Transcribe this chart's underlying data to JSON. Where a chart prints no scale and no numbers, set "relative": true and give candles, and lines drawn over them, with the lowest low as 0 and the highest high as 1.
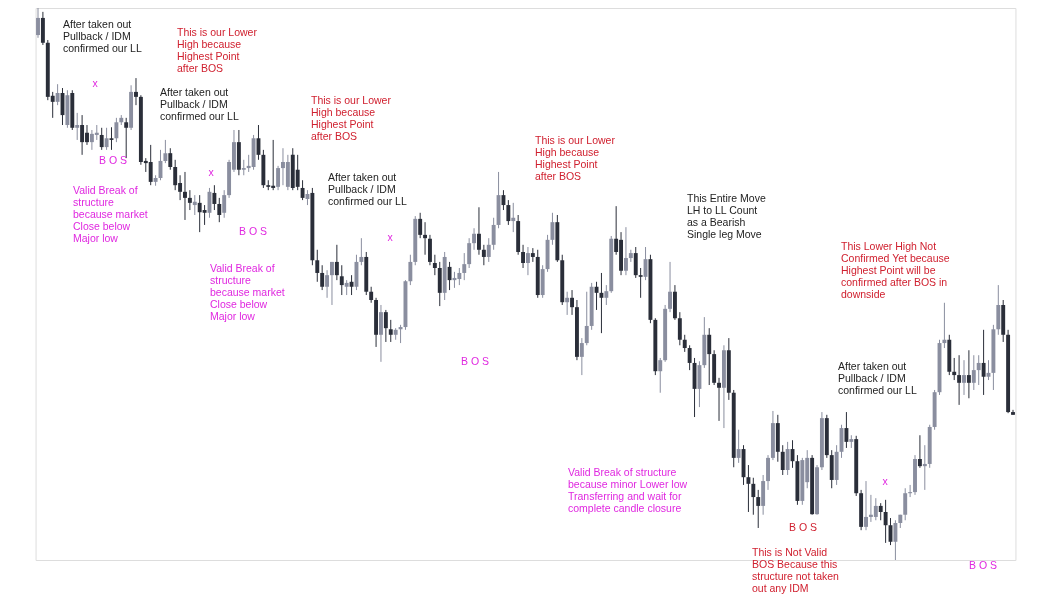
{
  "chart_data": {
    "type": "candlestick",
    "relative": true,
    "categories": [
      null,
      null,
      null,
      null,
      null,
      null,
      null,
      null,
      null,
      null,
      null,
      null,
      null,
      null,
      null,
      null,
      null,
      null,
      null,
      null,
      null,
      null,
      null,
      null,
      null,
      null,
      null,
      null,
      null,
      null,
      null,
      null,
      null,
      null,
      null,
      null,
      null,
      null,
      null,
      null,
      null,
      null,
      null,
      null,
      null,
      null,
      null,
      null,
      null,
      null,
      null,
      null,
      null,
      null,
      null,
      null,
      null,
      null,
      null,
      null,
      null,
      null,
      null,
      null,
      null,
      null,
      null,
      null,
      null,
      null,
      null,
      null,
      null,
      null,
      null,
      null,
      null,
      null,
      null,
      null,
      null,
      null,
      null,
      null,
      null,
      null,
      null,
      null,
      null,
      null,
      null,
      null,
      null,
      null,
      null,
      null,
      null,
      null,
      null,
      null,
      null,
      null,
      null,
      null,
      null,
      null,
      null,
      null,
      null,
      null,
      null,
      null,
      null,
      null,
      null,
      null,
      null,
      null,
      null,
      null,
      null,
      null,
      null,
      null,
      null,
      null,
      null,
      null,
      null,
      null,
      null,
      null,
      null,
      null,
      null,
      null,
      null,
      null,
      null,
      null,
      null,
      null,
      null,
      null,
      null,
      null,
      null,
      null,
      null,
      null,
      null,
      null,
      null,
      null,
      null,
      null,
      null,
      null,
      null,
      null,
      null,
      null,
      null,
      null,
      null,
      null,
      null,
      null,
      null,
      null,
      null,
      null,
      null,
      null,
      null,
      null,
      null,
      null,
      null,
      null,
      null,
      null,
      null,
      null,
      null,
      null,
      null,
      null,
      null,
      null,
      null,
      null,
      null,
      null,
      null,
      null,
      null,
      null,
      null,
      null
    ],
    "ohlc": [
      [
        0.951,
        1.0,
        0.946,
        0.982
      ],
      [
        0.982,
        0.993,
        0.933,
        0.937
      ],
      [
        0.937,
        0.942,
        0.833,
        0.839
      ],
      [
        0.841,
        0.848,
        0.801,
        0.83
      ],
      [
        0.83,
        0.862,
        0.824,
        0.846
      ],
      [
        0.846,
        0.855,
        0.788,
        0.806
      ],
      [
        0.788,
        0.851,
        0.783,
        0.842
      ],
      [
        0.846,
        0.851,
        0.779,
        0.783
      ],
      [
        0.783,
        0.81,
        0.761,
        0.788
      ],
      [
        0.788,
        0.806,
        0.734,
        0.757
      ],
      [
        0.774,
        0.788,
        0.752,
        0.757
      ],
      [
        0.757,
        0.779,
        0.743,
        0.772
      ],
      [
        0.77,
        0.788,
        0.761,
        0.774
      ],
      [
        0.77,
        0.783,
        0.743,
        0.748
      ],
      [
        0.748,
        0.783,
        0.743,
        0.764
      ],
      [
        0.764,
        0.784,
        0.743,
        0.761
      ],
      [
        0.764,
        0.801,
        0.757,
        0.793
      ],
      [
        0.793,
        0.806,
        0.788,
        0.801
      ],
      [
        0.793,
        0.801,
        0.728,
        0.783
      ],
      [
        0.783,
        0.86,
        0.779,
        0.848
      ],
      [
        0.848,
        0.873,
        0.824,
        0.839
      ],
      [
        0.839,
        0.842,
        0.716,
        0.721
      ],
      [
        0.723,
        0.728,
        0.703,
        0.719
      ],
      [
        0.721,
        0.752,
        0.679,
        0.685
      ],
      [
        0.685,
        0.697,
        0.678,
        0.692
      ],
      [
        0.692,
        0.743,
        0.688,
        0.723
      ],
      [
        0.723,
        0.761,
        0.719,
        0.737
      ],
      [
        0.737,
        0.746,
        0.707,
        0.712
      ],
      [
        0.712,
        0.725,
        0.67,
        0.679
      ],
      [
        0.683,
        0.697,
        0.652,
        0.667
      ],
      [
        0.667,
        0.703,
        0.616,
        0.656
      ],
      [
        0.656,
        0.67,
        0.634,
        0.647
      ],
      [
        0.643,
        0.661,
        0.625,
        0.649
      ],
      [
        0.647,
        0.661,
        0.594,
        0.63
      ],
      [
        0.634,
        0.643,
        0.607,
        0.629
      ],
      [
        0.629,
        0.674,
        0.62,
        0.667
      ],
      [
        0.665,
        0.679,
        0.634,
        0.645
      ],
      [
        0.645,
        0.656,
        0.612,
        0.625
      ],
      [
        0.629,
        0.67,
        0.62,
        0.661
      ],
      [
        0.661,
        0.725,
        0.656,
        0.721
      ],
      [
        0.707,
        0.779,
        0.703,
        0.757
      ],
      [
        0.757,
        0.779,
        0.697,
        0.707
      ],
      [
        0.707,
        0.725,
        0.697,
        0.71
      ],
      [
        0.71,
        0.734,
        0.703,
        0.714
      ],
      [
        0.712,
        0.77,
        0.707,
        0.764
      ],
      [
        0.764,
        0.788,
        0.725,
        0.734
      ],
      [
        0.734,
        0.743,
        0.674,
        0.679
      ],
      [
        0.679,
        0.688,
        0.67,
        0.676
      ],
      [
        0.678,
        0.761,
        0.67,
        0.674
      ],
      [
        0.676,
        0.714,
        0.67,
        0.71
      ],
      [
        0.71,
        0.746,
        0.679,
        0.721
      ],
      [
        0.676,
        0.734,
        0.67,
        0.721
      ],
      [
        0.734,
        0.746,
        0.67,
        0.674
      ],
      [
        0.707,
        0.734,
        0.67,
        0.676
      ],
      [
        0.674,
        0.688,
        0.652,
        0.656
      ],
      [
        0.654,
        0.67,
        0.643,
        0.663
      ],
      [
        0.665,
        0.674,
        0.534,
        0.543
      ],
      [
        0.543,
        0.562,
        0.504,
        0.52
      ],
      [
        0.52,
        0.534,
        0.489,
        0.495
      ],
      [
        0.495,
        0.525,
        0.475,
        0.516
      ],
      [
        0.516,
        0.54,
        0.462,
        0.54
      ],
      [
        0.54,
        0.571,
        0.507,
        0.516
      ],
      [
        0.514,
        0.534,
        0.48,
        0.498
      ],
      [
        0.495,
        0.507,
        0.48,
        0.502
      ],
      [
        0.504,
        0.516,
        0.48,
        0.495
      ],
      [
        0.495,
        0.553,
        0.489,
        0.54
      ],
      [
        0.54,
        0.583,
        0.534,
        0.549
      ],
      [
        0.549,
        0.558,
        0.48,
        0.486
      ],
      [
        0.486,
        0.495,
        0.466,
        0.471
      ],
      [
        0.471,
        0.475,
        0.386,
        0.408
      ],
      [
        0.408,
        0.462,
        0.359,
        0.449
      ],
      [
        0.449,
        0.453,
        0.395,
        0.42
      ],
      [
        0.418,
        0.435,
        0.395,
        0.408
      ],
      [
        0.408,
        0.42,
        0.399,
        0.417
      ],
      [
        0.418,
        0.426,
        0.393,
        0.422
      ],
      [
        0.422,
        0.507,
        0.417,
        0.505
      ],
      [
        0.505,
        0.553,
        0.498,
        0.54
      ],
      [
        0.54,
        0.623,
        0.534,
        0.618
      ],
      [
        0.618,
        0.629,
        0.583,
        0.589
      ],
      [
        0.589,
        0.612,
        0.553,
        0.583
      ],
      [
        0.582,
        0.589,
        0.534,
        0.54
      ],
      [
        0.538,
        0.553,
        0.516,
        0.529
      ],
      [
        0.529,
        0.54,
        0.46,
        0.484
      ],
      [
        0.484,
        0.558,
        0.471,
        0.549
      ],
      [
        0.531,
        0.54,
        0.489,
        0.507
      ],
      [
        0.507,
        0.522,
        0.493,
        0.511
      ],
      [
        0.509,
        0.529,
        0.498,
        0.52
      ],
      [
        0.52,
        0.556,
        0.507,
        0.536
      ],
      [
        0.536,
        0.583,
        0.529,
        0.574
      ],
      [
        0.574,
        0.601,
        0.562,
        0.591
      ],
      [
        0.591,
        0.639,
        0.553,
        0.562
      ],
      [
        0.562,
        0.571,
        0.534,
        0.549
      ],
      [
        0.549,
        0.583,
        0.54,
        0.571
      ],
      [
        0.571,
        0.62,
        0.562,
        0.607
      ],
      [
        0.607,
        0.703,
        0.601,
        0.661
      ],
      [
        0.661,
        0.67,
        0.634,
        0.643
      ],
      [
        0.643,
        0.652,
        0.607,
        0.614
      ],
      [
        0.614,
        0.647,
        0.594,
        0.62
      ],
      [
        0.614,
        0.625,
        0.553,
        0.558
      ],
      [
        0.558,
        0.571,
        0.529,
        0.538
      ],
      [
        0.538,
        0.567,
        0.516,
        0.556
      ],
      [
        0.556,
        0.565,
        0.54,
        0.549
      ],
      [
        0.549,
        0.562,
        0.475,
        0.48
      ],
      [
        0.48,
        0.534,
        0.475,
        0.527
      ],
      [
        0.527,
        0.589,
        0.522,
        0.58
      ],
      [
        0.58,
        0.629,
        0.571,
        0.612
      ],
      [
        0.612,
        0.625,
        0.54,
        0.543
      ],
      [
        0.543,
        0.553,
        0.462,
        0.467
      ],
      [
        0.467,
        0.486,
        0.444,
        0.475
      ],
      [
        0.475,
        0.489,
        0.444,
        0.458
      ],
      [
        0.458,
        0.471,
        0.362,
        0.368
      ],
      [
        0.368,
        0.402,
        0.335,
        0.393
      ],
      [
        0.393,
        0.486,
        0.389,
        0.424
      ],
      [
        0.424,
        0.502,
        0.417,
        0.495
      ],
      [
        0.495,
        0.504,
        0.453,
        0.484
      ],
      [
        0.484,
        0.52,
        0.411,
        0.475
      ],
      [
        0.475,
        0.498,
        0.462,
        0.487
      ],
      [
        0.487,
        0.587,
        0.484,
        0.582
      ],
      [
        0.582,
        0.641,
        0.553,
        0.558
      ],
      [
        0.58,
        0.594,
        0.516,
        0.524
      ],
      [
        0.524,
        0.603,
        0.516,
        0.547
      ],
      [
        0.547,
        0.562,
        0.54,
        0.556
      ],
      [
        0.556,
        0.567,
        0.511,
        0.516
      ],
      [
        0.516,
        0.529,
        0.475,
        0.513
      ],
      [
        0.513,
        0.567,
        0.507,
        0.545
      ],
      [
        0.545,
        0.553,
        0.429,
        0.435
      ],
      [
        0.435,
        0.438,
        0.335,
        0.342
      ],
      [
        0.342,
        0.366,
        0.303,
        0.362
      ],
      [
        0.362,
        0.462,
        0.359,
        0.455
      ],
      [
        0.455,
        0.54,
        0.449,
        0.486
      ],
      [
        0.486,
        0.498,
        0.435,
        0.438
      ],
      [
        0.438,
        0.449,
        0.389,
        0.399
      ],
      [
        0.399,
        0.408,
        0.377,
        0.384
      ],
      [
        0.384,
        0.389,
        0.344,
        0.357
      ],
      [
        0.357,
        0.366,
        0.259,
        0.31
      ],
      [
        0.31,
        0.36,
        0.277,
        0.353
      ],
      [
        0.353,
        0.44,
        0.348,
        0.408
      ],
      [
        0.408,
        0.42,
        0.317,
        0.373
      ],
      [
        0.373,
        0.38,
        0.317,
        0.321
      ],
      [
        0.321,
        0.33,
        0.252,
        0.312
      ],
      [
        0.312,
        0.389,
        0.239,
        0.38
      ],
      [
        0.38,
        0.402,
        0.29,
        0.303
      ],
      [
        0.303,
        0.308,
        0.168,
        0.185
      ],
      [
        0.185,
        0.236,
        0.176,
        0.201
      ],
      [
        0.201,
        0.208,
        0.136,
        0.15
      ],
      [
        0.15,
        0.172,
        0.087,
        0.138
      ],
      [
        0.138,
        0.149,
        0.082,
        0.114
      ],
      [
        0.114,
        0.127,
        0.058,
        0.098
      ],
      [
        0.098,
        0.154,
        0.082,
        0.143
      ],
      [
        0.143,
        0.19,
        0.127,
        0.185
      ],
      [
        0.185,
        0.27,
        0.181,
        0.248
      ],
      [
        0.248,
        0.263,
        0.178,
        0.196
      ],
      [
        0.196,
        0.208,
        0.154,
        0.163
      ],
      [
        0.163,
        0.214,
        0.154,
        0.201
      ],
      [
        0.201,
        0.217,
        0.167,
        0.179
      ],
      [
        0.179,
        0.19,
        0.1,
        0.107
      ],
      [
        0.107,
        0.185,
        0.1,
        0.181
      ],
      [
        0.141,
        0.199,
        0.13,
        0.185
      ],
      [
        0.185,
        0.19,
        0.082,
        0.083
      ],
      [
        0.083,
        0.172,
        0.082,
        0.168
      ],
      [
        0.168,
        0.268,
        0.163,
        0.257
      ],
      [
        0.257,
        0.263,
        0.185,
        0.19
      ],
      [
        0.19,
        0.199,
        0.13,
        0.145
      ],
      [
        0.145,
        0.208,
        0.136,
        0.196
      ],
      [
        0.196,
        0.245,
        0.185,
        0.239
      ],
      [
        0.239,
        0.268,
        0.203,
        0.214
      ],
      [
        0.214,
        0.226,
        0.203,
        0.219
      ],
      [
        0.219,
        0.225,
        0.116,
        0.121
      ],
      [
        0.121,
        0.127,
        0.054,
        0.06
      ],
      [
        0.06,
        0.143,
        0.054,
        0.078
      ],
      [
        0.078,
        0.118,
        0.069,
        0.082
      ],
      [
        0.078,
        0.112,
        0.072,
        0.098
      ],
      [
        0.098,
        0.103,
        0.072,
        0.087
      ],
      [
        0.087,
        0.109,
        0.031,
        0.063
      ],
      [
        0.063,
        0.076,
        0.027,
        0.033
      ],
      [
        0.033,
        0.072,
        0.0,
        0.067
      ],
      [
        0.067,
        0.082,
        0.058,
        0.082
      ],
      [
        0.082,
        0.13,
        0.072,
        0.121
      ],
      [
        0.121,
        0.136,
        0.114,
        0.123
      ],
      [
        0.123,
        0.19,
        0.118,
        0.183
      ],
      [
        0.183,
        0.226,
        0.167,
        0.17
      ],
      [
        0.17,
        0.208,
        0.127,
        0.174
      ],
      [
        0.174,
        0.245,
        0.167,
        0.241
      ],
      [
        0.241,
        0.308,
        0.236,
        0.304
      ],
      [
        0.304,
        0.399,
        0.299,
        0.393
      ],
      [
        0.393,
        0.466,
        0.384,
        0.399
      ],
      [
        0.399,
        0.408,
        0.335,
        0.341
      ],
      [
        0.341,
        0.366,
        0.326,
        0.335
      ],
      [
        0.335,
        0.371,
        0.281,
        0.321
      ],
      [
        0.321,
        0.362,
        0.299,
        0.335
      ],
      [
        0.335,
        0.38,
        0.293,
        0.321
      ],
      [
        0.321,
        0.371,
        0.308,
        0.344
      ],
      [
        0.344,
        0.371,
        0.317,
        0.357
      ],
      [
        0.357,
        0.417,
        0.299,
        0.332
      ],
      [
        0.332,
        0.362,
        0.326,
        0.339
      ],
      [
        0.339,
        0.426,
        0.308,
        0.418
      ],
      [
        0.418,
        0.498,
        0.408,
        0.462
      ],
      [
        0.462,
        0.471,
        0.395,
        0.408
      ],
      [
        0.408,
        0.417,
        0.266,
        0.268
      ],
      [
        0.268,
        0.272,
        0.263,
        0.263
      ]
    ],
    "colors": [
      "#8a8e9f",
      "#2a2e39",
      "#2a2e39",
      "#2a2e39",
      "#8a8e9f",
      "#2a2e39",
      "#8a8e9f",
      "#2a2e39",
      "#8a8e9f",
      "#2a2e39",
      "#2a2e39",
      "#8a8e9f",
      "#8a8e9f",
      "#2a2e39",
      "#8a8e9f",
      "#2a2e39",
      "#8a8e9f",
      "#8a8e9f",
      "#2a2e39",
      "#8a8e9f",
      "#2a2e39",
      "#2a2e39",
      "#2a2e39",
      "#2a2e39",
      "#8a8e9f",
      "#8a8e9f",
      "#8a8e9f",
      "#2a2e39",
      "#2a2e39",
      "#2a2e39",
      "#2a2e39",
      "#2a2e39",
      "#8a8e9f",
      "#2a2e39",
      "#2a2e39",
      "#8a8e9f",
      "#2a2e39",
      "#2a2e39",
      "#8a8e9f",
      "#8a8e9f",
      "#8a8e9f",
      "#2a2e39",
      "#8a8e9f",
      "#8a8e9f",
      "#8a8e9f",
      "#2a2e39",
      "#2a2e39",
      "#2a2e39",
      "#2a2e39",
      "#8a8e9f",
      "#8a8e9f",
      "#8a8e9f",
      "#2a2e39",
      "#2a2e39",
      "#2a2e39",
      "#8a8e9f",
      "#2a2e39",
      "#2a2e39",
      "#2a2e39",
      "#8a8e9f",
      "#8a8e9f",
      "#2a2e39",
      "#2a2e39",
      "#8a8e9f",
      "#2a2e39",
      "#8a8e9f",
      "#8a8e9f",
      "#2a2e39",
      "#2a2e39",
      "#2a2e39",
      "#8a8e9f",
      "#2a2e39",
      "#2a2e39",
      "#8a8e9f",
      "#8a8e9f",
      "#8a8e9f",
      "#8a8e9f",
      "#8a8e9f",
      "#2a2e39",
      "#2a2e39",
      "#2a2e39",
      "#2a2e39",
      "#2a2e39",
      "#8a8e9f",
      "#2a2e39",
      "#8a8e9f",
      "#8a8e9f",
      "#8a8e9f",
      "#8a8e9f",
      "#8a8e9f",
      "#2a2e39",
      "#2a2e39",
      "#8a8e9f",
      "#8a8e9f",
      "#8a8e9f",
      "#2a2e39",
      "#2a2e39",
      "#8a8e9f",
      "#2a2e39",
      "#2a2e39",
      "#8a8e9f",
      "#2a2e39",
      "#2a2e39",
      "#8a8e9f",
      "#8a8e9f",
      "#8a8e9f",
      "#2a2e39",
      "#2a2e39",
      "#8a8e9f",
      "#2a2e39",
      "#2a2e39",
      "#8a8e9f",
      "#8a8e9f",
      "#8a8e9f",
      "#2a2e39",
      "#2a2e39",
      "#8a8e9f",
      "#8a8e9f",
      "#2a2e39",
      "#2a2e39",
      "#8a8e9f",
      "#8a8e9f",
      "#2a2e39",
      "#2a2e39",
      "#8a8e9f",
      "#2a2e39",
      "#2a2e39",
      "#8a8e9f",
      "#8a8e9f",
      "#8a8e9f",
      "#2a2e39",
      "#2a2e39",
      "#2a2e39",
      "#2a2e39",
      "#2a2e39",
      "#8a8e9f",
      "#8a8e9f",
      "#2a2e39",
      "#2a2e39",
      "#2a2e39",
      "#8a8e9f",
      "#2a2e39",
      "#2a2e39",
      "#8a8e9f",
      "#2a2e39",
      "#2a2e39",
      "#2a2e39",
      "#2a2e39",
      "#8a8e9f",
      "#8a8e9f",
      "#8a8e9f",
      "#2a2e39",
      "#2a2e39",
      "#8a8e9f",
      "#2a2e39",
      "#2a2e39",
      "#8a8e9f",
      "#8a8e9f",
      "#2a2e39",
      "#8a8e9f",
      "#8a8e9f",
      "#2a2e39",
      "#2a2e39",
      "#8a8e9f",
      "#8a8e9f",
      "#2a2e39",
      "#8a8e9f",
      "#2a2e39",
      "#2a2e39",
      "#8a8e9f",
      "#8a8e9f",
      "#8a8e9f",
      "#2a2e39",
      "#2a2e39",
      "#2a2e39",
      "#8a8e9f",
      "#8a8e9f",
      "#8a8e9f",
      "#8a8e9f",
      "#8a8e9f",
      "#2a2e39",
      "#8a8e9f",
      "#8a8e9f",
      "#8a8e9f",
      "#8a8e9f",
      "#8a8e9f",
      "#2a2e39",
      "#2a2e39",
      "#2a2e39",
      "#8a8e9f",
      "#2a2e39",
      "#8a8e9f",
      "#8a8e9f",
      "#2a2e39",
      "#8a8e9f",
      "#8a8e9f",
      "#8a8e9f",
      "#2a2e39",
      "#2a2e39",
      "#2a2e39"
    ],
    "annotations": [
      "After taken out\nPullback / IDM\nconfirmed our LL",
      "This is our Lower\nHigh because\nHighest Point\nafter BOS",
      "x",
      "B O S",
      "Valid Break of\nstructure\nbecause market\nClose below\nMajor low",
      "After taken out\nPullback / IDM\nconfirmed our LL",
      "This is our Lower\nHigh because\nHighest Point\nafter BOS",
      "x",
      "B O S",
      "Valid Break of\nstructure\nbecause market\nClose below\nMajor low",
      "After taken out\nPullback / IDM\nconfirmed our LL",
      "This is our Lower\nHigh because\nHighest Point\nafter BOS",
      "x",
      "B O S",
      "This Entire Move\nLH to LL Count\nas a Bearish\nSingle leg Move",
      "This  Lower High Not\nConfirmed Yet because\nHighest Point will be\nconfirmed after BOS in\ndownside",
      "After taken out\nPullback / IDM\nconfirmed our LL",
      "Valid Break of structure\nbecause minor Lower low\nTransferring and wait for\ncomplete candle closure",
      "B O S",
      "This is Not Valid\nBOS Because this\nstructure not taken\nout any IDM",
      "x",
      "B O S"
    ]
  }
}
